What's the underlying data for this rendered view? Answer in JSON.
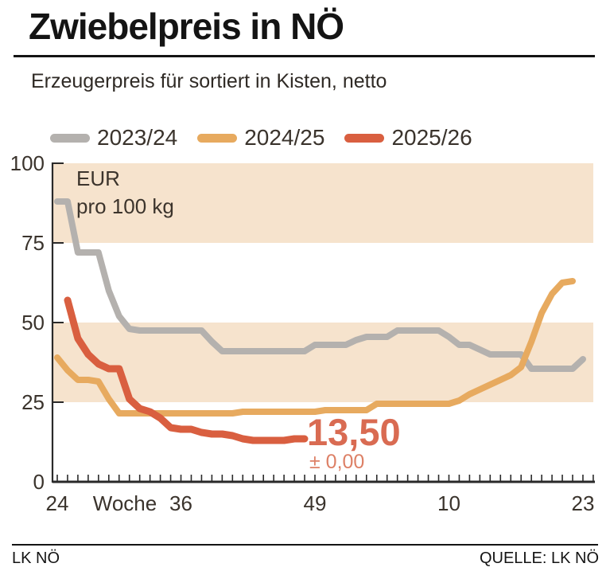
{
  "title": "Zwiebelpreis in NÖ",
  "subtitle": "Erzeugerpreis für sortiert in Kisten, netto",
  "unit_label": {
    "line1": "EUR",
    "line2": "pro 100 kg"
  },
  "current_price": {
    "value": "13,50",
    "change": "± 0,00"
  },
  "footer": {
    "left": "LK NÖ",
    "right": "QUELLE: LK NÖ"
  },
  "colors": {
    "band": "#f6e3cd",
    "axis": "#2a2a2a",
    "tick_text": "#3a332c",
    "gray_series": "#b4b1ae",
    "orange_series": "#e7aa5f",
    "red_series": "#d95f40",
    "price_text": "#d96b52",
    "delta_text": "#dd8066"
  },
  "chart_data": {
    "type": "line",
    "x_axis_title": "Woche",
    "ylim": [
      0,
      100
    ],
    "y_ticks": [
      0,
      25,
      50,
      75,
      100
    ],
    "shaded_bands": [
      [
        75,
        100
      ],
      [
        25,
        50
      ]
    ],
    "grid": "off",
    "legend_position": "top",
    "weeks": [
      24,
      25,
      26,
      27,
      28,
      29,
      30,
      31,
      32,
      33,
      34,
      35,
      36,
      37,
      38,
      39,
      40,
      41,
      42,
      43,
      44,
      45,
      46,
      47,
      48,
      49,
      50,
      51,
      52,
      1,
      2,
      3,
      4,
      5,
      6,
      7,
      8,
      9,
      10,
      11,
      12,
      13,
      14,
      15,
      16,
      17,
      18,
      19,
      20,
      21,
      22,
      23
    ],
    "x_tick_labels": [
      {
        "label": "24",
        "index": 0
      },
      {
        "label": "36",
        "index": 12
      },
      {
        "label": "49",
        "index": 25
      },
      {
        "label": "10",
        "index": 38
      },
      {
        "label": "23",
        "index": 51
      }
    ],
    "series": [
      {
        "name": "2023/24",
        "color": "#b4b1ae",
        "values": [
          88,
          88,
          72,
          72,
          72,
          60,
          52,
          48,
          47.5,
          47.5,
          47.5,
          47.5,
          47.5,
          47.5,
          47.5,
          44,
          41,
          41,
          41,
          41,
          41,
          41,
          41,
          41,
          41,
          43,
          43,
          43,
          43,
          44.5,
          45.5,
          45.5,
          45.5,
          47.5,
          47.5,
          47.5,
          47.5,
          47.5,
          45.5,
          43,
          43,
          41.5,
          40,
          40,
          40,
          40,
          35.5,
          35.5,
          35.5,
          35.5,
          35.5,
          38.5
        ]
      },
      {
        "name": "2024/25",
        "color": "#e7aa5f",
        "values": [
          39,
          35,
          32,
          32,
          31.5,
          26,
          21.5,
          21.5,
          21.5,
          21.5,
          21.5,
          21.5,
          21.5,
          21.5,
          21.5,
          21.5,
          21.5,
          21.5,
          22,
          22,
          22,
          22,
          22,
          22,
          22,
          22,
          22.5,
          22.5,
          22.5,
          22.5,
          22.5,
          24.5,
          24.5,
          24.5,
          24.5,
          24.5,
          24.5,
          24.5,
          24.5,
          25.5,
          27.5,
          29,
          30.5,
          32,
          33.5,
          36,
          44,
          53,
          59,
          62.5,
          63,
          null
        ]
      },
      {
        "name": "2025/26",
        "color": "#d95f40",
        "values": [
          null,
          57,
          45,
          40,
          37,
          35.5,
          35.5,
          26,
          23,
          22,
          20,
          17,
          16.5,
          16.5,
          15.5,
          15,
          15,
          14.5,
          13.5,
          13,
          13,
          13,
          13,
          13.5,
          13.5,
          null,
          null,
          null,
          null,
          null,
          null,
          null,
          null,
          null,
          null,
          null,
          null,
          null,
          null,
          null,
          null,
          null,
          null,
          null,
          null,
          null,
          null,
          null,
          null,
          null,
          null,
          null
        ]
      }
    ]
  }
}
